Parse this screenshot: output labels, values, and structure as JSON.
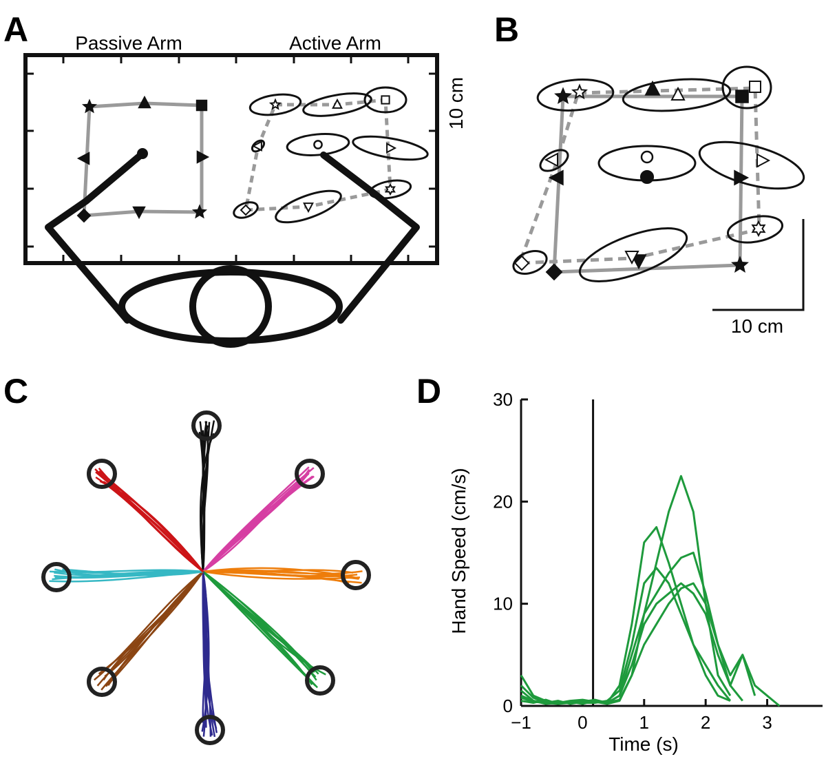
{
  "panels": {
    "A": {
      "label": "A",
      "passive_label": "Passive Arm",
      "active_label": "Active Arm",
      "scale_label": "10 cm"
    },
    "B": {
      "label": "B",
      "scale_label": "10 cm"
    },
    "C": {
      "label": "C"
    },
    "D": {
      "label": "D"
    }
  },
  "chart_data": {
    "type": "line",
    "xlabel": "Time (s)",
    "ylabel": "Hand Speed (cm/s)",
    "x": [
      -1,
      -0.8,
      -0.6,
      -0.4,
      -0.2,
      0,
      0.2,
      0.4,
      0.6,
      0.8,
      1.0,
      1.2,
      1.4,
      1.6,
      1.8,
      2.0,
      2.2,
      2.4,
      2.6,
      2.8,
      3.0,
      3.2
    ],
    "xlim": [
      -1,
      3.9
    ],
    "ylim": [
      0,
      30
    ],
    "xticks": [
      {
        "value": -1,
        "label": "−1"
      },
      0,
      1,
      2,
      3
    ],
    "yticks": [
      0,
      10,
      20,
      30
    ],
    "event_x": 0.17,
    "series": [
      {
        "color": "#1e9a3c",
        "values": [
          1,
          0.5,
          0.3,
          0.4,
          0.3,
          0.5,
          0.4,
          0.3,
          0.6,
          3,
          9,
          14,
          19,
          22.5,
          19,
          10,
          3,
          1,
          null,
          null,
          null,
          null
        ]
      },
      {
        "color": "#1e9a3c",
        "values": [
          2,
          0.8,
          0.3,
          0.5,
          0.2,
          0.4,
          0.6,
          0.3,
          2,
          8,
          16,
          17.5,
          14,
          10,
          6,
          3,
          1,
          0.5,
          null,
          null,
          null,
          null
        ]
      },
      {
        "color": "#1e9a3c",
        "values": [
          3,
          1,
          0.5,
          0.3,
          0.4,
          0.2,
          0.5,
          0.3,
          1,
          5,
          9,
          11,
          13,
          14.5,
          15,
          11,
          6,
          2,
          5,
          1,
          null,
          null
        ]
      },
      {
        "color": "#1e9a3c",
        "values": [
          0.5,
          0.3,
          0.6,
          0.2,
          0.4,
          0.3,
          0.3,
          0.5,
          1.5,
          6,
          12,
          13.5,
          12,
          9,
          6,
          4,
          2,
          0.5,
          null,
          null,
          null,
          null
        ]
      },
      {
        "color": "#1e9a3c",
        "values": [
          1.5,
          0.5,
          0.2,
          0.3,
          0.5,
          0.6,
          0.4,
          0.2,
          0.5,
          3,
          6,
          8,
          10,
          11.5,
          12,
          10,
          6,
          3,
          5,
          2,
          1,
          0
        ]
      },
      {
        "color": "#1e9a3c",
        "values": [
          0.8,
          0.4,
          0.3,
          0.2,
          0.3,
          0.4,
          0.5,
          0.3,
          1,
          4,
          8,
          10,
          11,
          12,
          11,
          9,
          5,
          2,
          0.5,
          null,
          null,
          null
        ]
      }
    ]
  }
}
